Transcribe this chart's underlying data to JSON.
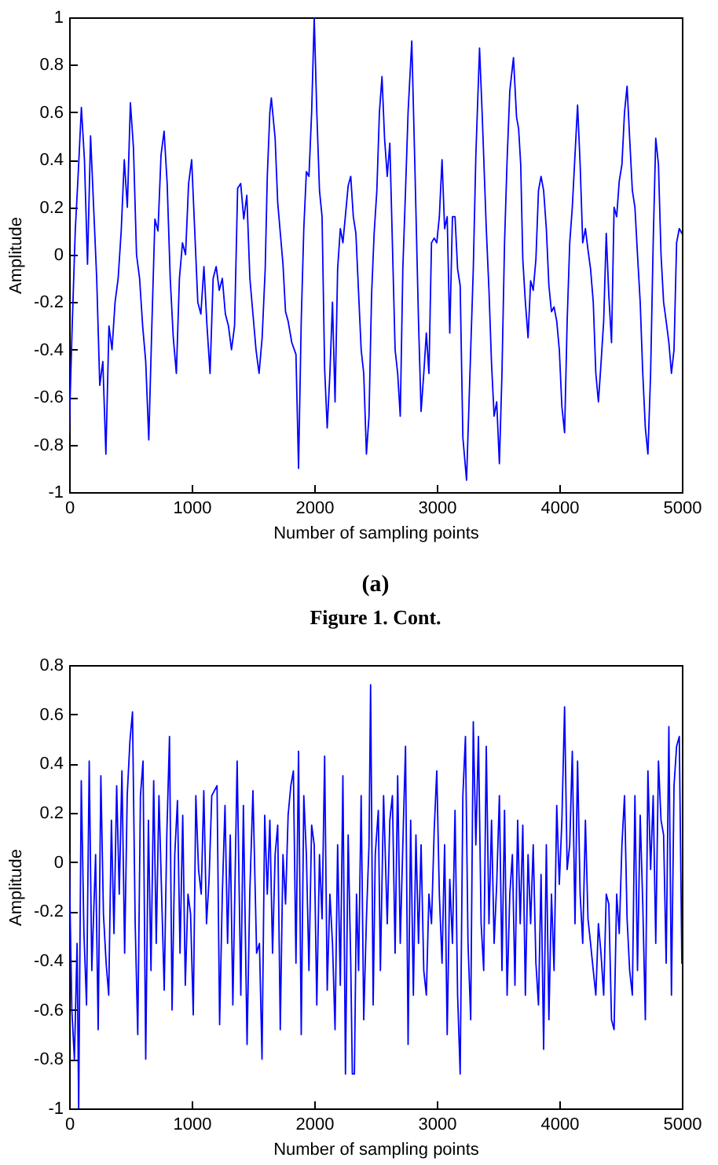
{
  "chart_data": [
    {
      "type": "line",
      "xlabel": "Number of sampling points",
      "ylabel": "Amplitude",
      "annotations": [
        "(a)",
        "Figure 1. Cont."
      ],
      "xlim": [
        0,
        5000
      ],
      "ylim": [
        -1,
        1
      ],
      "xticks": [
        0,
        1000,
        2000,
        3000,
        4000,
        5000
      ],
      "yticks": [
        -1,
        -0.8,
        -0.6,
        -0.4,
        -0.2,
        0,
        0.2,
        0.4,
        0.6,
        0.8,
        1
      ],
      "x": [
        0,
        25,
        50,
        75,
        100,
        125,
        150,
        175,
        200,
        225,
        250,
        275,
        300,
        325,
        350,
        375,
        400,
        425,
        450,
        475,
        500,
        525,
        550,
        575,
        600,
        625,
        650,
        675,
        700,
        725,
        750,
        775,
        800,
        825,
        850,
        875,
        900,
        925,
        950,
        975,
        1000,
        1025,
        1050,
        1075,
        1100,
        1125,
        1150,
        1175,
        1200,
        1225,
        1250,
        1275,
        1300,
        1325,
        1350,
        1375,
        1400,
        1425,
        1450,
        1475,
        1500,
        1525,
        1550,
        1575,
        1600,
        1617,
        1638,
        1650,
        1681,
        1702,
        1745,
        1766,
        1787,
        1817,
        1851,
        1872,
        1894,
        1915,
        1936,
        1957,
        1979,
        2000,
        2021,
        2043,
        2064,
        2085,
        2106,
        2128,
        2149,
        2170,
        2191,
        2213,
        2234,
        2277,
        2298,
        2319,
        2340,
        2383,
        2404,
        2426,
        2447,
        2468,
        2489,
        2511,
        2532,
        2553,
        2574,
        2596,
        2617,
        2660,
        2681,
        2702,
        2723,
        2745,
        2766,
        2796,
        2821,
        2851,
        2872,
        2894,
        2915,
        2936,
        2957,
        2979,
        3000,
        3021,
        3043,
        3064,
        3085,
        3106,
        3128,
        3149,
        3170,
        3191,
        3213,
        3243,
        3277,
        3298,
        3319,
        3349,
        3370,
        3404,
        3426,
        3447,
        3468,
        3489,
        3511,
        3532,
        3553,
        3574,
        3596,
        3626,
        3651,
        3668,
        3685,
        3702,
        3723,
        3745,
        3766,
        3787,
        3809,
        3830,
        3851,
        3872,
        3894,
        3915,
        3936,
        3957,
        3979,
        4000,
        4021,
        4043,
        4064,
        4085,
        4106,
        4128,
        4149,
        4170,
        4191,
        4213,
        4234,
        4255,
        4277,
        4298,
        4319,
        4340,
        4362,
        4383,
        4404,
        4426,
        4447,
        4468,
        4489,
        4511,
        4532,
        4553,
        4574,
        4596,
        4617,
        4638,
        4660,
        4681,
        4702,
        4723,
        4745,
        4766,
        4787,
        4809,
        4830,
        4851,
        4872,
        4894,
        4915,
        4936,
        4957,
        4979,
        5000
      ],
      "series": [
        {
          "color": "#0000ff",
          "values": [
            -0.75,
            -0.3,
            0.1,
            0.35,
            0.62,
            0.4,
            -0.04,
            0.5,
            0.2,
            -0.1,
            -0.55,
            -0.45,
            -0.84,
            -0.3,
            -0.4,
            -0.2,
            -0.1,
            0.1,
            0.4,
            0.2,
            0.64,
            0.45,
            0.0,
            -0.1,
            -0.3,
            -0.45,
            -0.78,
            -0.3,
            0.15,
            0.1,
            0.42,
            0.52,
            0.3,
            -0.1,
            -0.35,
            -0.5,
            -0.1,
            0.05,
            0.0,
            0.3,
            0.4,
            0.1,
            -0.2,
            -0.25,
            -0.05,
            -0.3,
            -0.5,
            -0.1,
            -0.05,
            -0.15,
            -0.1,
            -0.25,
            -0.3,
            -0.4,
            -0.3,
            0.28,
            0.3,
            0.15,
            0.25,
            -0.1,
            -0.25,
            -0.4,
            -0.5,
            -0.35,
            -0.06,
            0.33,
            0.6,
            0.66,
            0.49,
            0.22,
            -0.04,
            -0.24,
            -0.28,
            -0.37,
            -0.42,
            -0.9,
            -0.28,
            0.11,
            0.35,
            0.33,
            0.6,
            1.0,
            0.6,
            0.27,
            0.16,
            -0.48,
            -0.73,
            -0.5,
            -0.2,
            -0.62,
            -0.06,
            0.11,
            0.05,
            0.29,
            0.33,
            0.16,
            0.09,
            -0.4,
            -0.5,
            -0.84,
            -0.68,
            -0.17,
            0.09,
            0.27,
            0.6,
            0.75,
            0.49,
            0.33,
            0.47,
            -0.4,
            -0.5,
            -0.68,
            -0.06,
            0.27,
            0.6,
            0.9,
            0.38,
            -0.28,
            -0.66,
            -0.5,
            -0.33,
            -0.5,
            0.05,
            0.07,
            0.05,
            0.16,
            0.4,
            0.11,
            0.16,
            -0.33,
            0.16,
            0.16,
            -0.06,
            -0.13,
            -0.77,
            -0.95,
            -0.4,
            -0.06,
            0.42,
            0.87,
            0.6,
            0.11,
            -0.15,
            -0.46,
            -0.68,
            -0.62,
            -0.88,
            -0.5,
            0.05,
            0.4,
            0.69,
            0.83,
            0.58,
            0.53,
            0.38,
            -0.02,
            -0.2,
            -0.35,
            -0.11,
            -0.15,
            -0.02,
            0.27,
            0.33,
            0.27,
            0.11,
            -0.13,
            -0.24,
            -0.22,
            -0.28,
            -0.4,
            -0.64,
            -0.75,
            -0.28,
            0.05,
            0.2,
            0.42,
            0.63,
            0.38,
            0.05,
            0.11,
            0.02,
            -0.06,
            -0.2,
            -0.5,
            -0.62,
            -0.46,
            -0.28,
            0.09,
            -0.17,
            -0.37,
            0.2,
            0.16,
            0.31,
            0.38,
            0.6,
            0.71,
            0.49,
            0.27,
            0.2,
            0.0,
            -0.2,
            -0.5,
            -0.73,
            -0.84,
            -0.5,
            0.05,
            0.49,
            0.38,
            0.0,
            -0.2,
            -0.28,
            -0.37,
            -0.5,
            -0.4,
            0.05,
            0.11,
            0.09
          ]
        }
      ]
    },
    {
      "type": "line",
      "xlabel": "Number of sampling points",
      "ylabel": "Amplitude",
      "xlim": [
        0,
        5000
      ],
      "ylim": [
        -1,
        0.8
      ],
      "xticks": [
        0,
        1000,
        2000,
        3000,
        4000,
        5000
      ],
      "yticks": [
        -1,
        -0.8,
        -0.6,
        -0.4,
        -0.2,
        0,
        0.2,
        0.4,
        0.6,
        0.8
      ],
      "x": [
        0,
        22,
        43,
        65,
        78,
        99,
        121,
        142,
        164,
        185,
        216,
        237,
        259,
        280,
        302,
        323,
        345,
        366,
        388,
        409,
        431,
        453,
        474,
        496,
        517,
        539,
        560,
        582,
        603,
        625,
        647,
        668,
        690,
        711,
        733,
        776,
        797,
        819,
        840,
        862,
        884,
        905,
        927,
        948,
        970,
        991,
        1013,
        1034,
        1056,
        1078,
        1099,
        1121,
        1142,
        1164,
        1207,
        1228,
        1250,
        1272,
        1293,
        1315,
        1336,
        1371,
        1401,
        1422,
        1452,
        1474,
        1500,
        1530,
        1553,
        1574,
        1596,
        1617,
        1638,
        1660,
        1681,
        1702,
        1723,
        1745,
        1766,
        1787,
        1809,
        1830,
        1851,
        1872,
        1894,
        1915,
        1936,
        1957,
        1979,
        2000,
        2021,
        2043,
        2064,
        2085,
        2106,
        2128,
        2149,
        2170,
        2191,
        2213,
        2234,
        2255,
        2277,
        2298,
        2311,
        2328,
        2345,
        2362,
        2383,
        2404,
        2426,
        2447,
        2460,
        2481,
        2498,
        2523,
        2540,
        2566,
        2596,
        2617,
        2638,
        2660,
        2681,
        2702,
        2723,
        2745,
        2766,
        2787,
        2809,
        2830,
        2851,
        2872,
        2894,
        2915,
        2936,
        2957,
        2979,
        3000,
        3021,
        3043,
        3064,
        3085,
        3106,
        3128,
        3149,
        3170,
        3191,
        3213,
        3234,
        3255,
        3277,
        3298,
        3319,
        3340,
        3362,
        3383,
        3404,
        3426,
        3447,
        3468,
        3489,
        3511,
        3532,
        3553,
        3574,
        3596,
        3617,
        3638,
        3660,
        3681,
        3702,
        3723,
        3745,
        3766,
        3787,
        3809,
        3830,
        3851,
        3872,
        3894,
        3915,
        3936,
        3957,
        3979,
        4000,
        4021,
        4043,
        4064,
        4085,
        4106,
        4128,
        4149,
        4170,
        4191,
        4213,
        4234,
        4255,
        4277,
        4298,
        4319,
        4340,
        4362,
        4383,
        4404,
        4426,
        4447,
        4468,
        4489,
        4511,
        4532,
        4553,
        4574,
        4596,
        4617,
        4638,
        4660,
        4681,
        4702,
        4723,
        4745,
        4766,
        4787,
        4809,
        4830,
        4851,
        4872,
        4894,
        4915,
        4936,
        4957,
        4979,
        5000
      ],
      "series": [
        {
          "color": "#0000ff",
          "values": [
            0.03,
            -0.6,
            -0.8,
            -0.33,
            -1.0,
            0.33,
            -0.29,
            -0.58,
            0.41,
            -0.44,
            0.03,
            -0.68,
            0.35,
            -0.21,
            -0.41,
            -0.54,
            0.17,
            -0.29,
            0.31,
            -0.13,
            0.37,
            -0.37,
            0.27,
            0.49,
            0.61,
            -0.25,
            -0.7,
            0.27,
            0.41,
            -0.8,
            0.17,
            -0.44,
            0.33,
            -0.33,
            0.27,
            -0.52,
            0.11,
            0.51,
            -0.6,
            0.03,
            0.25,
            -0.37,
            0.19,
            -0.5,
            -0.13,
            -0.21,
            -0.62,
            0.27,
            -0.03,
            -0.13,
            0.29,
            -0.25,
            -0.07,
            0.27,
            0.31,
            -0.66,
            -0.13,
            0.23,
            -0.33,
            0.11,
            -0.58,
            0.41,
            -0.54,
            0.23,
            -0.74,
            -0.13,
            0.29,
            -0.37,
            -0.33,
            -0.8,
            0.19,
            -0.13,
            0.17,
            -0.37,
            0.03,
            0.15,
            -0.68,
            0.03,
            -0.17,
            0.19,
            0.31,
            0.37,
            -0.41,
            0.45,
            -0.7,
            0.27,
            0.03,
            -0.44,
            0.15,
            0.07,
            -0.58,
            0.03,
            -0.23,
            0.43,
            -0.52,
            -0.13,
            -0.33,
            -0.68,
            0.07,
            -0.5,
            0.35,
            -0.86,
            0.11,
            -0.41,
            -0.86,
            -0.86,
            -0.13,
            -0.44,
            0.27,
            -0.64,
            -0.23,
            0.07,
            0.72,
            -0.58,
            0.03,
            0.21,
            -0.44,
            0.27,
            -0.25,
            0.17,
            0.27,
            -0.37,
            0.35,
            -0.33,
            0.07,
            0.47,
            -0.74,
            0.17,
            -0.54,
            0.11,
            -0.33,
            0.07,
            -0.44,
            -0.54,
            -0.13,
            -0.25,
            0.13,
            0.37,
            -0.13,
            -0.41,
            0.07,
            -0.7,
            -0.07,
            -0.33,
            0.21,
            -0.54,
            -0.86,
            0.27,
            0.51,
            -0.33,
            -0.64,
            0.57,
            0.07,
            0.51,
            -0.25,
            -0.44,
            0.47,
            -0.25,
            0.17,
            -0.33,
            -0.09,
            0.27,
            -0.44,
            0.21,
            -0.54,
            -0.13,
            0.03,
            -0.5,
            0.17,
            -0.25,
            0.15,
            -0.54,
            0.03,
            -0.25,
            0.07,
            -0.41,
            -0.58,
            -0.05,
            -0.76,
            0.07,
            -0.64,
            -0.13,
            -0.44,
            0.23,
            -0.09,
            0.17,
            0.63,
            -0.03,
            0.07,
            0.45,
            -0.25,
            0.41,
            -0.13,
            -0.33,
            0.17,
            -0.23,
            -0.33,
            -0.44,
            -0.54,
            -0.25,
            -0.37,
            -0.54,
            -0.13,
            -0.17,
            -0.64,
            -0.68,
            -0.13,
            -0.29,
            0.07,
            0.27,
            -0.23,
            -0.44,
            -0.54,
            0.27,
            -0.44,
            0.19,
            -0.17,
            -0.64,
            0.37,
            -0.03,
            0.27,
            -0.33,
            0.41,
            0.17,
            0.11,
            -0.41,
            0.55,
            -0.54,
            0.31,
            0.47,
            0.51,
            -0.41
          ]
        }
      ]
    }
  ]
}
